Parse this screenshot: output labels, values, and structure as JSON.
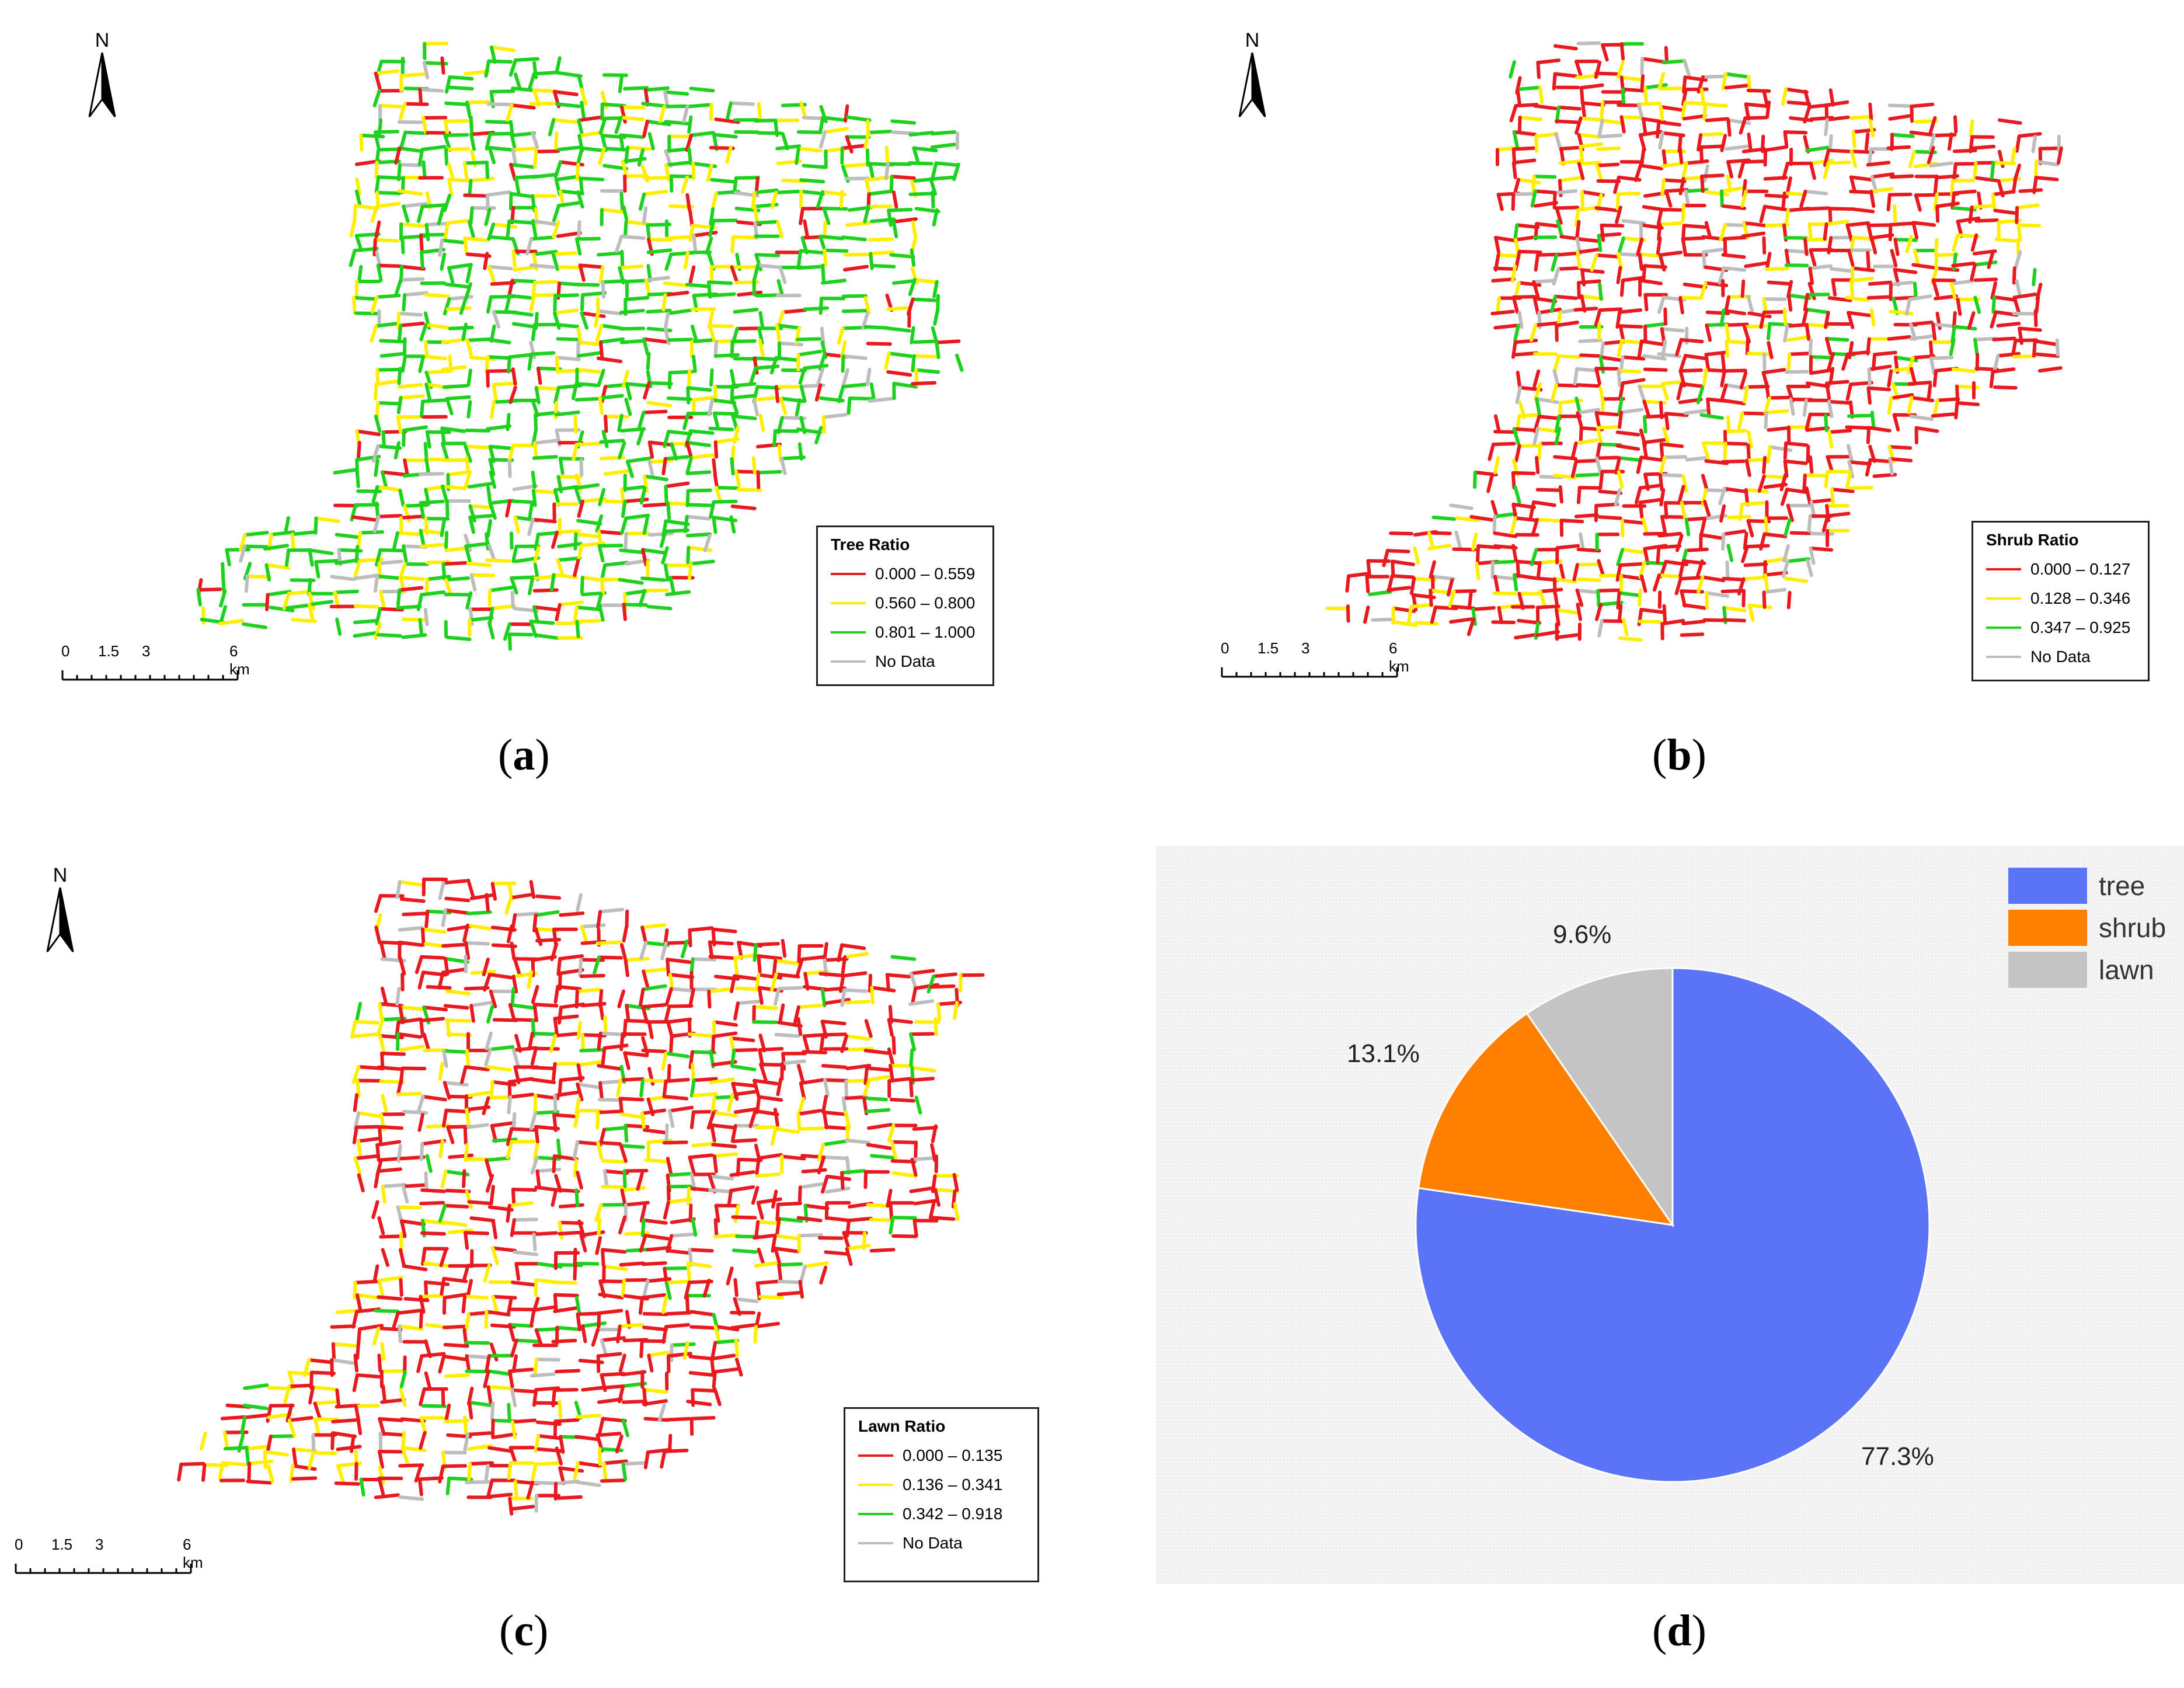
{
  "colors": {
    "red": "#e8191f",
    "yellow": "#ffee00",
    "green": "#1ed11e",
    "nodata": "#bdbdbd"
  },
  "north_label": "N",
  "scale": {
    "ticks": [
      "0",
      "1.5",
      "3",
      "6 km"
    ]
  },
  "panels": [
    {
      "id": "a",
      "caption": "a",
      "legend": {
        "title": "Tree Ratio",
        "items": [
          {
            "label": "0.000 – 0.559",
            "color": "#e8191f"
          },
          {
            "label": "0.560 – 0.800",
            "color": "#ffee00"
          },
          {
            "label": "0.801 – 1.000",
            "color": "#1ed11e"
          },
          {
            "label": "No Data",
            "color": "#bdbdbd"
          }
        ]
      },
      "dominant_class": "green"
    },
    {
      "id": "b",
      "caption": "b",
      "legend": {
        "title": "Shrub Ratio",
        "items": [
          {
            "label": "0.000 – 0.127",
            "color": "#e8191f"
          },
          {
            "label": "0.128 – 0.346",
            "color": "#ffee00"
          },
          {
            "label": "0.347 – 0.925",
            "color": "#1ed11e"
          },
          {
            "label": "No Data",
            "color": "#bdbdbd"
          }
        ]
      },
      "dominant_class": "red"
    },
    {
      "id": "c",
      "caption": "c",
      "legend": {
        "title": "Lawn Ratio",
        "items": [
          {
            "label": "0.000 – 0.135",
            "color": "#e8191f"
          },
          {
            "label": "0.136 – 0.341",
            "color": "#ffee00"
          },
          {
            "label": "0.342 – 0.918",
            "color": "#1ed11e"
          },
          {
            "label": "No Data",
            "color": "#bdbdbd"
          }
        ]
      },
      "dominant_class": "red"
    }
  ],
  "pie_caption": "d",
  "chart_data": {
    "type": "pie",
    "categories": [
      "tree",
      "shrub",
      "lawn"
    ],
    "values": [
      77.3,
      13.1,
      9.6
    ],
    "labels": [
      "77.3%",
      "13.1%",
      "9.6%"
    ],
    "colors": [
      "#5b74f7",
      "#ff8000",
      "#c4c4c4"
    ],
    "legend_position": "top-right",
    "start": "12 o'clock, clockwise"
  }
}
